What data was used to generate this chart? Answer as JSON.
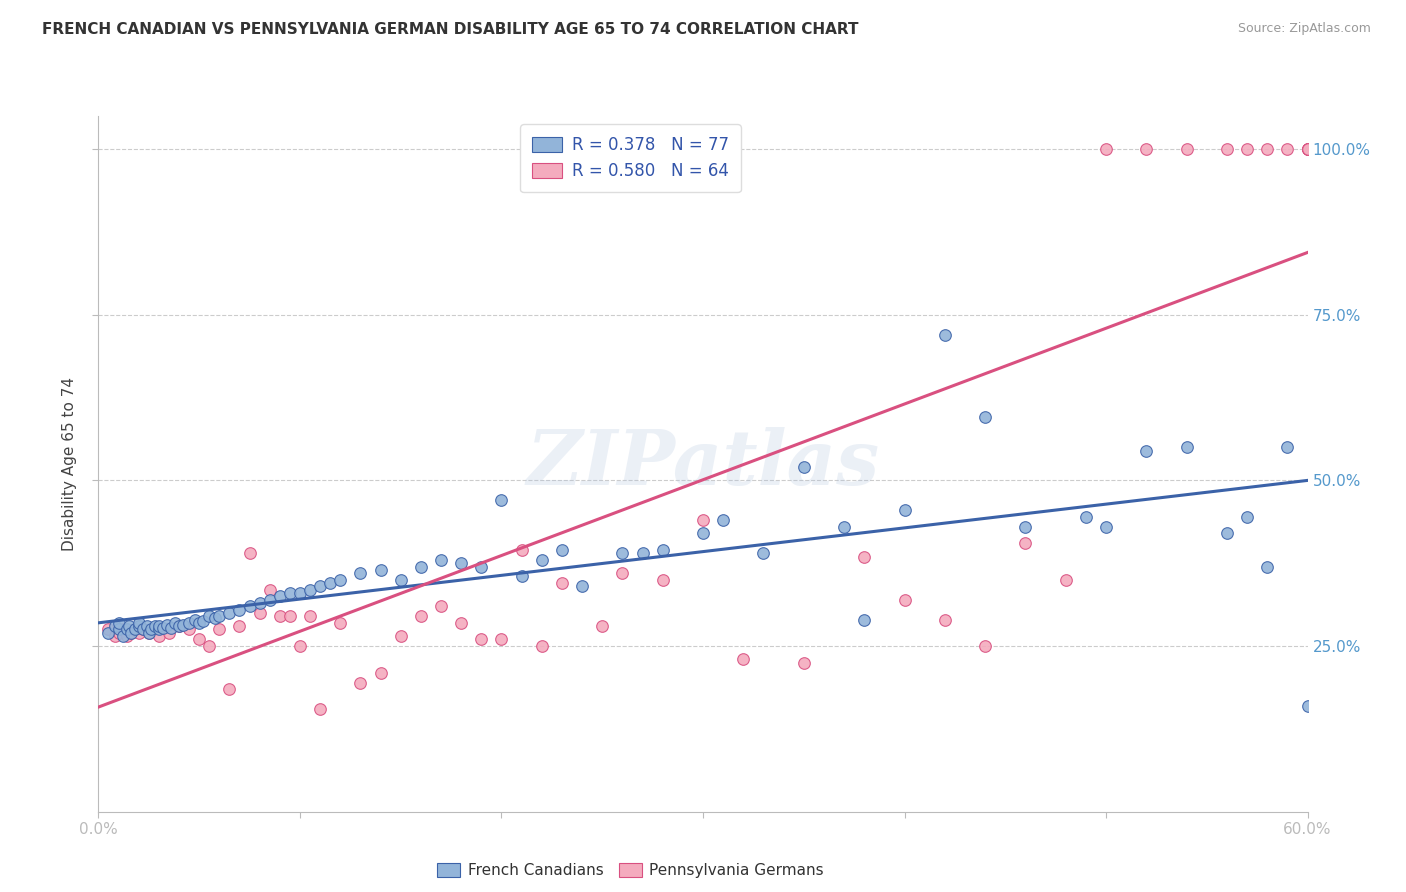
{
  "title": "FRENCH CANADIAN VS PENNSYLVANIA GERMAN DISABILITY AGE 65 TO 74 CORRELATION CHART",
  "source": "Source: ZipAtlas.com",
  "ylabel": "Disability Age 65 to 74",
  "xmin": 0.0,
  "xmax": 0.6,
  "ymin": 0.0,
  "ymax": 1.05,
  "yticks": [
    0.25,
    0.5,
    0.75,
    1.0
  ],
  "ytick_labels": [
    "25.0%",
    "50.0%",
    "75.0%",
    "100.0%"
  ],
  "xticks": [
    0.0,
    0.1,
    0.2,
    0.3,
    0.4,
    0.5,
    0.6
  ],
  "xtick_labels": [
    "0.0%",
    "",
    "",
    "",
    "",
    "",
    "60.0%"
  ],
  "blue_R": 0.378,
  "blue_N": 77,
  "pink_R": 0.58,
  "pink_N": 64,
  "blue_color": "#92B4D9",
  "pink_color": "#F4ABBE",
  "blue_line_color": "#3B62A8",
  "pink_line_color": "#D95080",
  "watermark": "ZIPatlas",
  "blue_scatter_x": [
    0.005,
    0.008,
    0.01,
    0.01,
    0.012,
    0.014,
    0.015,
    0.016,
    0.018,
    0.02,
    0.02,
    0.022,
    0.024,
    0.025,
    0.026,
    0.028,
    0.03,
    0.03,
    0.032,
    0.034,
    0.036,
    0.038,
    0.04,
    0.042,
    0.045,
    0.048,
    0.05,
    0.052,
    0.055,
    0.058,
    0.06,
    0.065,
    0.07,
    0.075,
    0.08,
    0.085,
    0.09,
    0.095,
    0.1,
    0.105,
    0.11,
    0.115,
    0.12,
    0.13,
    0.14,
    0.15,
    0.16,
    0.17,
    0.18,
    0.19,
    0.2,
    0.21,
    0.22,
    0.23,
    0.24,
    0.26,
    0.27,
    0.28,
    0.3,
    0.31,
    0.33,
    0.35,
    0.37,
    0.38,
    0.4,
    0.42,
    0.44,
    0.46,
    0.49,
    0.5,
    0.52,
    0.54,
    0.56,
    0.57,
    0.58,
    0.59,
    0.6
  ],
  "blue_scatter_y": [
    0.27,
    0.28,
    0.275,
    0.285,
    0.265,
    0.275,
    0.28,
    0.27,
    0.275,
    0.28,
    0.285,
    0.275,
    0.28,
    0.27,
    0.275,
    0.28,
    0.275,
    0.28,
    0.278,
    0.282,
    0.278,
    0.285,
    0.28,
    0.282,
    0.285,
    0.29,
    0.285,
    0.288,
    0.295,
    0.292,
    0.295,
    0.3,
    0.305,
    0.31,
    0.315,
    0.32,
    0.325,
    0.33,
    0.33,
    0.335,
    0.34,
    0.345,
    0.35,
    0.36,
    0.365,
    0.35,
    0.37,
    0.38,
    0.375,
    0.37,
    0.47,
    0.355,
    0.38,
    0.395,
    0.34,
    0.39,
    0.39,
    0.395,
    0.42,
    0.44,
    0.39,
    0.52,
    0.43,
    0.29,
    0.455,
    0.72,
    0.595,
    0.43,
    0.445,
    0.43,
    0.545,
    0.55,
    0.42,
    0.445,
    0.37,
    0.55,
    0.16
  ],
  "pink_scatter_x": [
    0.005,
    0.008,
    0.01,
    0.012,
    0.014,
    0.016,
    0.018,
    0.02,
    0.022,
    0.025,
    0.028,
    0.03,
    0.035,
    0.04,
    0.045,
    0.05,
    0.055,
    0.06,
    0.065,
    0.07,
    0.075,
    0.08,
    0.085,
    0.09,
    0.095,
    0.1,
    0.105,
    0.11,
    0.12,
    0.13,
    0.14,
    0.15,
    0.16,
    0.17,
    0.18,
    0.19,
    0.2,
    0.21,
    0.22,
    0.23,
    0.25,
    0.26,
    0.28,
    0.3,
    0.32,
    0.35,
    0.38,
    0.4,
    0.42,
    0.44,
    0.46,
    0.48,
    0.5,
    0.52,
    0.54,
    0.56,
    0.57,
    0.58,
    0.59,
    0.6,
    0.6,
    0.6,
    0.6,
    0.6
  ],
  "pink_scatter_y": [
    0.275,
    0.265,
    0.27,
    0.275,
    0.265,
    0.27,
    0.275,
    0.27,
    0.275,
    0.27,
    0.275,
    0.265,
    0.27,
    0.28,
    0.275,
    0.26,
    0.25,
    0.275,
    0.185,
    0.28,
    0.39,
    0.3,
    0.335,
    0.295,
    0.295,
    0.25,
    0.295,
    0.155,
    0.285,
    0.195,
    0.21,
    0.265,
    0.295,
    0.31,
    0.285,
    0.26,
    0.26,
    0.395,
    0.25,
    0.345,
    0.28,
    0.36,
    0.35,
    0.44,
    0.23,
    0.225,
    0.385,
    0.32,
    0.29,
    0.25,
    0.405,
    0.35,
    1.0,
    1.0,
    1.0,
    1.0,
    1.0,
    1.0,
    1.0,
    1.0,
    1.0,
    1.0,
    1.0,
    1.0
  ]
}
